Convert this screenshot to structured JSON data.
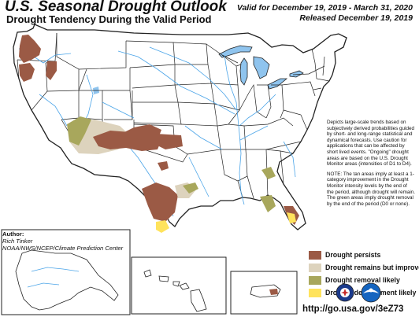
{
  "title": "U.S. Seasonal Drought Outlook",
  "subtitle": "Drought Tendency During the Valid Period",
  "valid_line": "Valid for December 19, 2019 - March 31, 2020",
  "released_line": "Released December 19, 2019",
  "note_text": "Depicts large-scale trends based on subjectively derived probabilities guided by short- and long-range statistical and dynamical forecasts. Use caution for applications that can be affected by short lived events. \"Ongoing\" drought areas are based on the U.S. Drought Monitor areas (intensities of D1 to D4).",
  "note_text_2": "NOTE: The tan areas imply at least a 1-category improvement in the Drought Monitor intensity levels by the end of the period, although drought will remain. The green areas imply drought removal by the end of the period (D0 or none).",
  "author": {
    "label": "Author:",
    "name": "Rich Tinker",
    "org": "NOAA/NWS/NCEP/Climate Prediction Center"
  },
  "legend": [
    {
      "label": "Drought persists",
      "color": "#9b5a45"
    },
    {
      "label": "Drought remains but improves",
      "color": "#ddd3bd"
    },
    {
      "label": "Drought removal likely",
      "color": "#a8a75c"
    },
    {
      "label": "Drought development likely",
      "color": "#ffe35c"
    }
  ],
  "url": "http://go.usa.gov/3eZ73",
  "colors": {
    "persists": "#9b5a45",
    "improves": "#ddd3bd",
    "removal": "#a8a75c",
    "development": "#ffe35c",
    "water": "#8fc4ee",
    "rivers": "#4aa4e8",
    "borders": "#222222"
  },
  "logos": [
    {
      "name": "nws-logo"
    },
    {
      "name": "noaa-logo"
    }
  ]
}
